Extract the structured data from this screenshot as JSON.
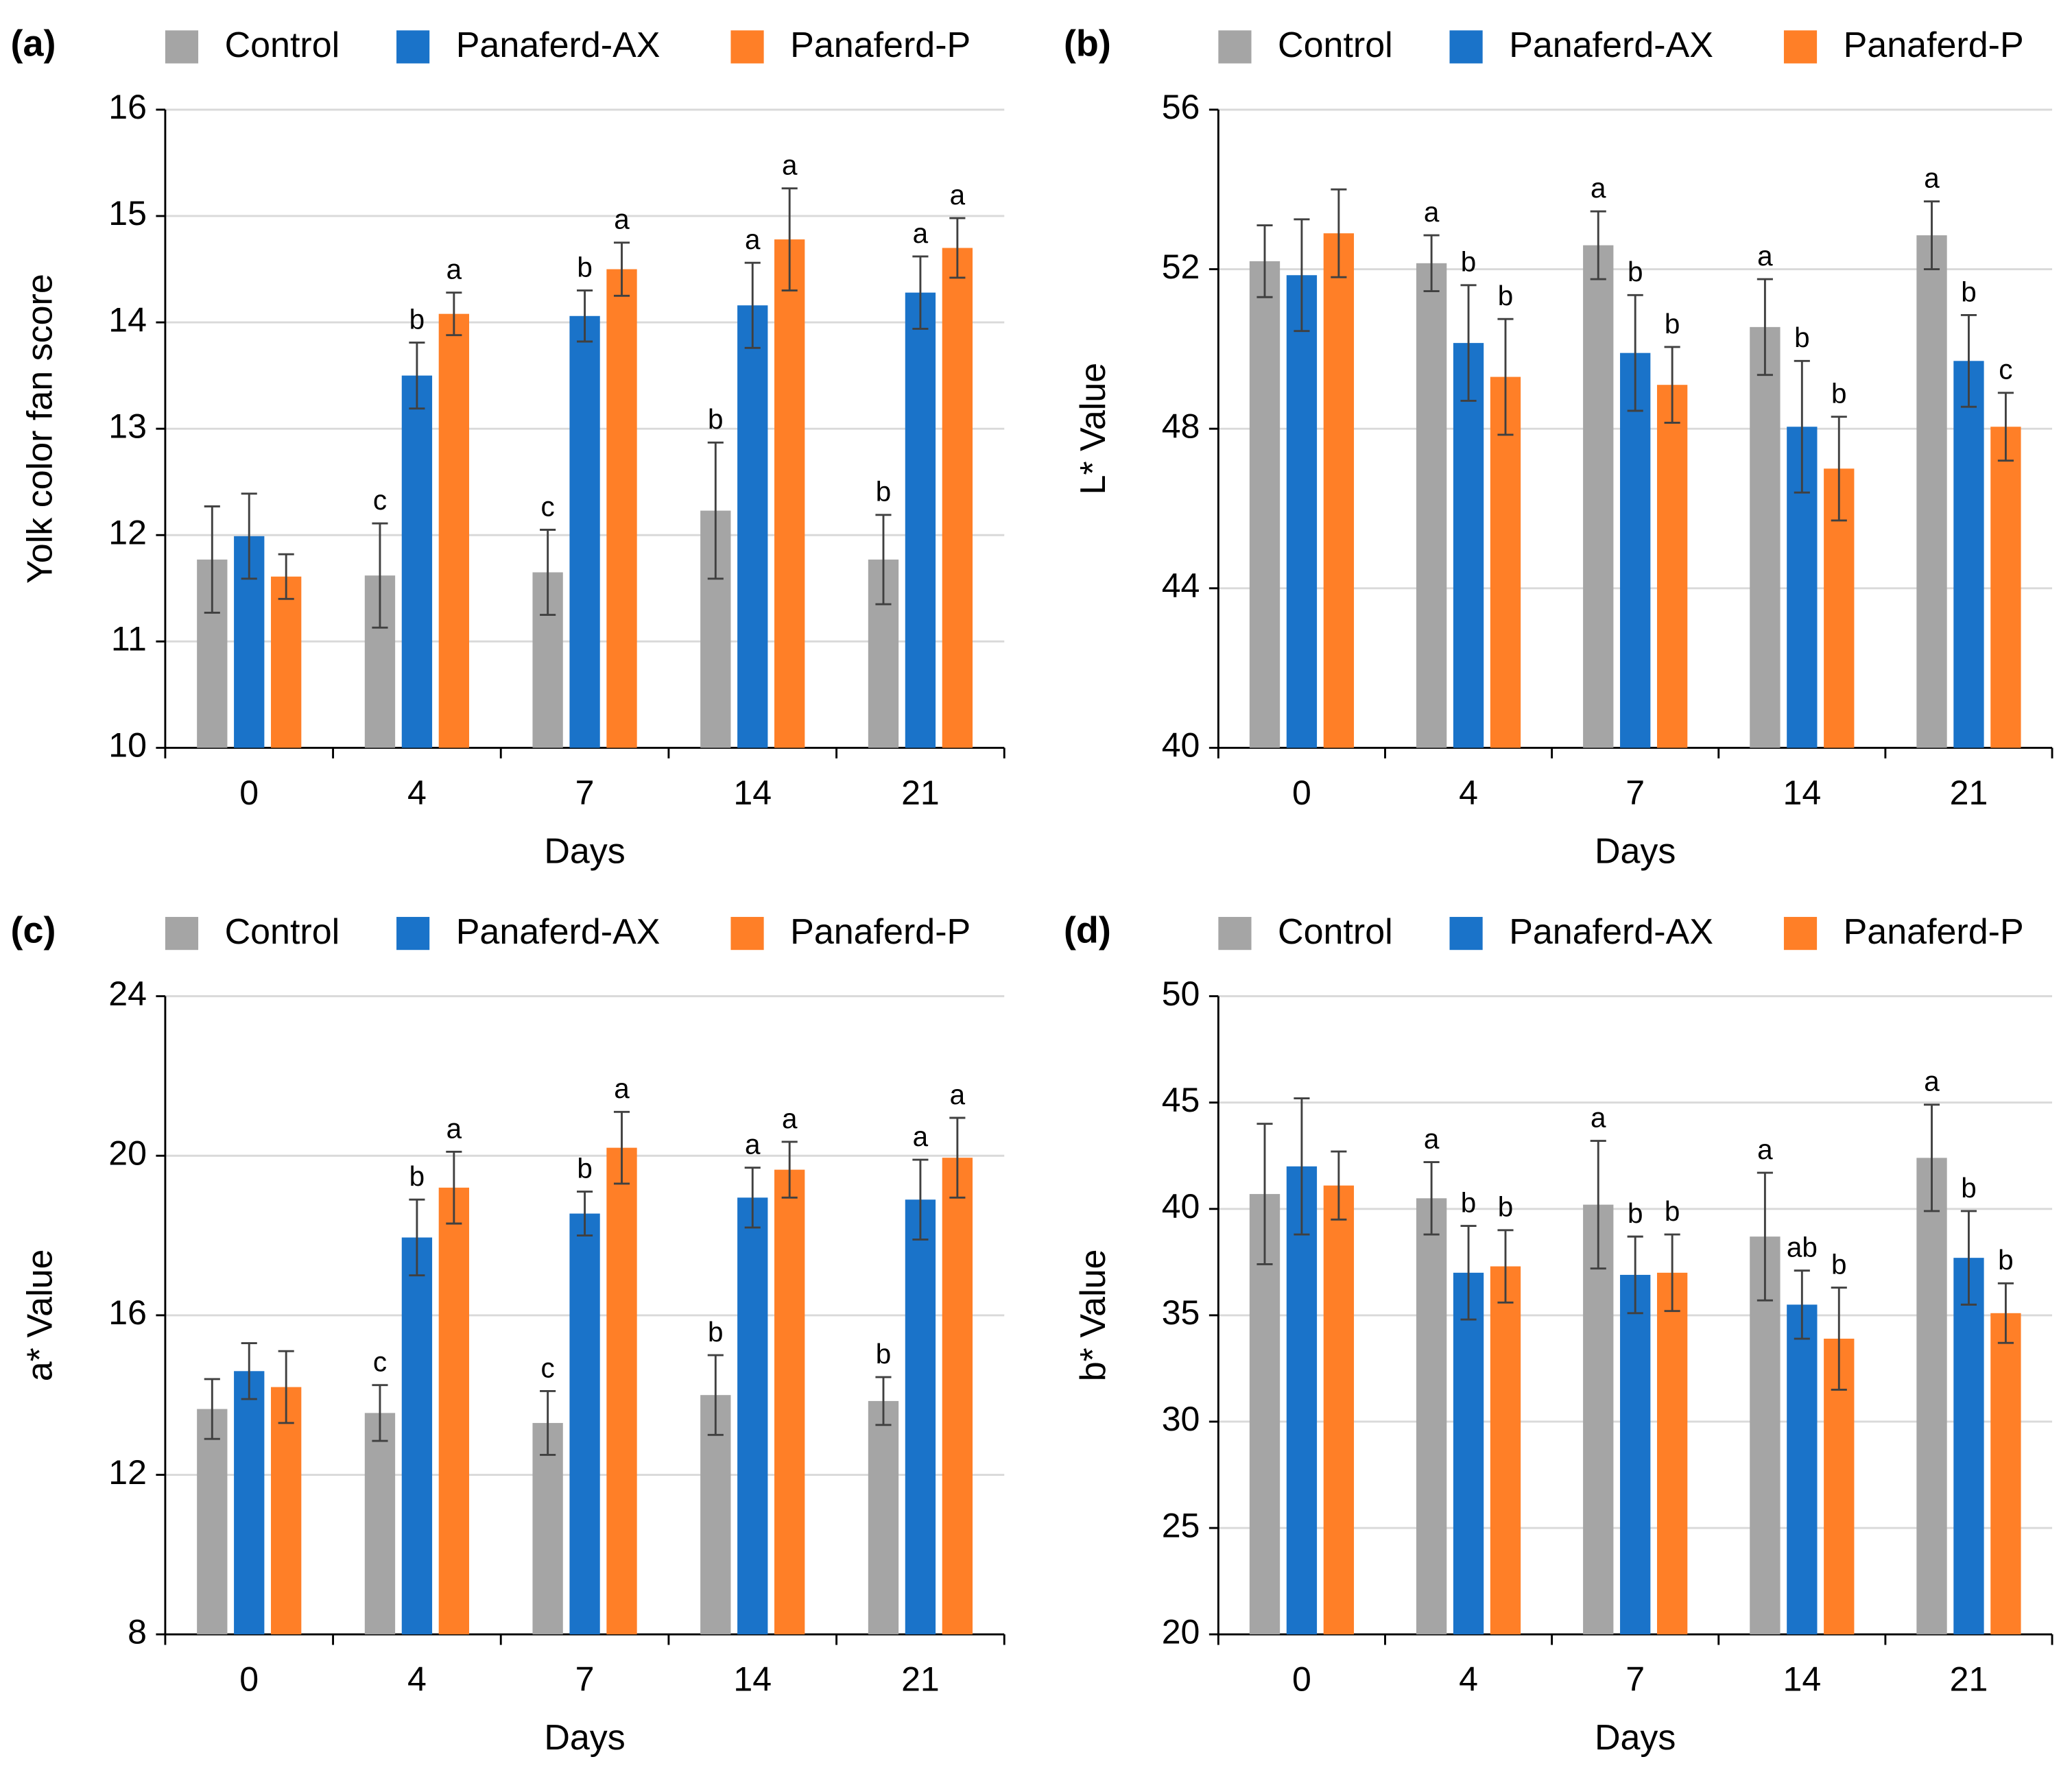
{
  "chart_data": [
    {
      "type": "bar",
      "panel": "(a)",
      "x_label": "Days",
      "y_label": "Yolk color fan score",
      "categories": [
        "0",
        "4",
        "7",
        "14",
        "21"
      ],
      "ylim": [
        10,
        16
      ],
      "yticks": [
        10,
        11,
        12,
        13,
        14,
        15,
        16
      ],
      "grid": true,
      "series": [
        {
          "name": "Control",
          "color": "#a5a5a5",
          "values": [
            11.77,
            11.62,
            11.65,
            12.23,
            11.77
          ],
          "errors": [
            0.5,
            0.49,
            0.4,
            0.64,
            0.42
          ],
          "letters": [
            null,
            "c",
            "c",
            "b",
            "b"
          ]
        },
        {
          "name": "Panaferd-AX",
          "color": "#1a73c9",
          "values": [
            11.99,
            13.5,
            14.06,
            14.16,
            14.28
          ],
          "errors": [
            0.4,
            0.31,
            0.24,
            0.4,
            0.34
          ],
          "letters": [
            null,
            "b",
            "b",
            "a",
            "a"
          ]
        },
        {
          "name": "Panaferd-P",
          "color": "#ff7f27",
          "values": [
            11.61,
            14.08,
            14.5,
            14.78,
            14.7
          ],
          "errors": [
            0.21,
            0.2,
            0.25,
            0.48,
            0.28
          ],
          "letters": [
            null,
            "a",
            "a",
            "a",
            "a"
          ]
        }
      ]
    },
    {
      "type": "bar",
      "panel": "(b)",
      "x_label": "Days",
      "y_label": "L* Value",
      "categories": [
        "0",
        "4",
        "7",
        "14",
        "21"
      ],
      "ylim": [
        40,
        56
      ],
      "yticks": [
        40,
        44,
        48,
        52,
        56
      ],
      "grid": true,
      "series": [
        {
          "name": "Control",
          "color": "#a5a5a5",
          "values": [
            52.2,
            52.15,
            52.6,
            50.55,
            52.85
          ],
          "errors": [
            0.9,
            0.7,
            0.85,
            1.2,
            0.85
          ],
          "letters": [
            null,
            "a",
            "a",
            "a",
            "a"
          ]
        },
        {
          "name": "Panaferd-AX",
          "color": "#1a73c9",
          "values": [
            51.85,
            50.15,
            49.9,
            48.05,
            49.7
          ],
          "errors": [
            1.4,
            1.45,
            1.45,
            1.65,
            1.15
          ],
          "letters": [
            null,
            "b",
            "b",
            "b",
            "b"
          ]
        },
        {
          "name": "Panaferd-P",
          "color": "#ff7f27",
          "values": [
            52.9,
            49.3,
            49.1,
            47.0,
            48.05
          ],
          "errors": [
            1.1,
            1.45,
            0.95,
            1.3,
            0.85
          ],
          "letters": [
            null,
            "b",
            "b",
            "b",
            "c"
          ]
        }
      ]
    },
    {
      "type": "bar",
      "panel": "(c)",
      "x_label": "Days",
      "y_label": "a* Value",
      "categories": [
        "0",
        "4",
        "7",
        "14",
        "21"
      ],
      "ylim": [
        8,
        24
      ],
      "yticks": [
        8,
        12,
        16,
        20,
        24
      ],
      "grid": true,
      "series": [
        {
          "name": "Control",
          "color": "#a5a5a5",
          "values": [
            13.65,
            13.55,
            13.3,
            14.0,
            13.85
          ],
          "errors": [
            0.75,
            0.7,
            0.8,
            1.0,
            0.6
          ],
          "letters": [
            null,
            "c",
            "c",
            "b",
            "b"
          ]
        },
        {
          "name": "Panaferd-AX",
          "color": "#1a73c9",
          "values": [
            14.6,
            17.95,
            18.55,
            18.95,
            18.9
          ],
          "errors": [
            0.7,
            0.95,
            0.55,
            0.75,
            1.0
          ],
          "letters": [
            null,
            "b",
            "b",
            "a",
            "a"
          ]
        },
        {
          "name": "Panaferd-P",
          "color": "#ff7f27",
          "values": [
            14.2,
            19.2,
            20.2,
            19.65,
            19.95
          ],
          "errors": [
            0.9,
            0.9,
            0.9,
            0.7,
            1.0
          ],
          "letters": [
            null,
            "a",
            "a",
            "a",
            "a"
          ]
        }
      ]
    },
    {
      "type": "bar",
      "panel": "(d)",
      "x_label": "Days",
      "y_label": "b* Value",
      "categories": [
        "0",
        "4",
        "7",
        "14",
        "21"
      ],
      "ylim": [
        20,
        50
      ],
      "yticks": [
        20,
        25,
        30,
        35,
        40,
        45,
        50
      ],
      "grid": true,
      "series": [
        {
          "name": "Control",
          "color": "#a5a5a5",
          "values": [
            40.7,
            40.5,
            40.2,
            38.7,
            42.4
          ],
          "errors": [
            3.3,
            1.7,
            3.0,
            3.0,
            2.5
          ],
          "letters": [
            null,
            "a",
            "a",
            "a",
            "a"
          ]
        },
        {
          "name": "Panaferd-AX",
          "color": "#1a73c9",
          "values": [
            42.0,
            37.0,
            36.9,
            35.5,
            37.7
          ],
          "errors": [
            3.2,
            2.2,
            1.8,
            1.6,
            2.2
          ],
          "letters": [
            null,
            "b",
            "b",
            "ab",
            "b"
          ]
        },
        {
          "name": "Panaferd-P",
          "color": "#ff7f27",
          "values": [
            41.1,
            37.3,
            37.0,
            33.9,
            35.1
          ],
          "errors": [
            1.6,
            1.7,
            1.8,
            2.4,
            1.4
          ],
          "letters": [
            null,
            "b",
            "b",
            "b",
            "b"
          ]
        }
      ]
    }
  ]
}
